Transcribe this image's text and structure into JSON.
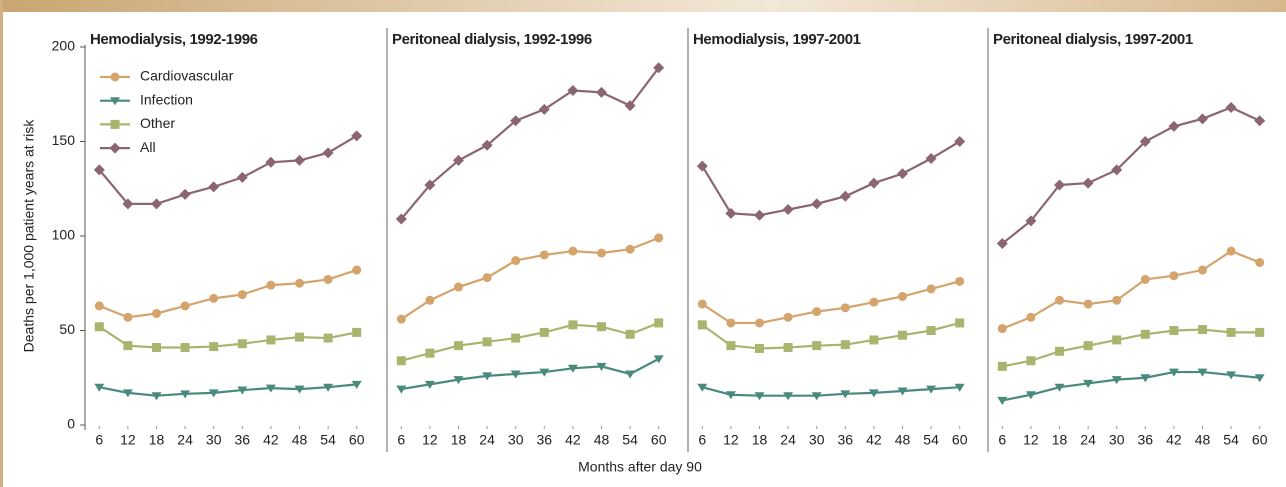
{
  "y_label": "Deaths per 1,000 patient years at risk",
  "x_label": "Months after day 90",
  "chart_data": [
    {
      "type": "line",
      "title": "Hemodialysis, 1992-1996",
      "legend": "upper left",
      "x": [
        6,
        12,
        18,
        24,
        30,
        36,
        42,
        48,
        54,
        60
      ],
      "xlim": [
        3,
        63
      ],
      "xticks": [
        6,
        12,
        18,
        24,
        30,
        36,
        42,
        48,
        54,
        60
      ],
      "ylim": [
        0,
        200
      ],
      "yticks": [
        0,
        50,
        100,
        150,
        200
      ],
      "series": [
        {
          "name": "Cardiovascular",
          "color": "#d4a46c",
          "marker": "circle",
          "values": [
            63,
            57,
            59,
            63,
            67,
            69,
            74,
            75,
            77,
            82
          ]
        },
        {
          "name": "Infection",
          "color": "#4a8a7c",
          "marker": "triangle-down",
          "values": [
            20,
            17,
            15.5,
            16.5,
            17,
            18.5,
            19.5,
            19,
            20,
            21.5
          ]
        },
        {
          "name": "Other",
          "color": "#a9b56e",
          "marker": "square",
          "values": [
            52,
            42,
            41,
            41,
            41.5,
            43,
            45,
            46.5,
            46,
            49
          ]
        },
        {
          "name": "All",
          "color": "#8b6670",
          "marker": "diamond",
          "values": [
            135,
            117,
            117,
            122,
            126,
            131,
            139,
            140,
            144,
            153
          ]
        }
      ]
    },
    {
      "type": "line",
      "title": "Peritoneal dialysis, 1992-1996",
      "x": [
        6,
        12,
        18,
        24,
        30,
        36,
        42,
        48,
        54,
        60
      ],
      "xlim": [
        3,
        63
      ],
      "xticks": [
        6,
        12,
        18,
        24,
        30,
        36,
        42,
        48,
        54,
        60
      ],
      "ylim": [
        0,
        200
      ],
      "series": [
        {
          "color": "#d4a46c",
          "marker": "circle",
          "values": [
            56,
            66,
            73,
            78,
            87,
            90,
            92,
            91,
            93,
            99
          ]
        },
        {
          "color": "#4a8a7c",
          "marker": "triangle-down",
          "values": [
            19,
            21.5,
            24,
            26,
            27,
            28,
            30,
            31,
            27,
            35
          ]
        },
        {
          "color": "#a9b56e",
          "marker": "square",
          "values": [
            34,
            38,
            42,
            44,
            46,
            49,
            53,
            52,
            48,
            54
          ]
        },
        {
          "color": "#8b6670",
          "marker": "diamond",
          "values": [
            109,
            127,
            140,
            148,
            161,
            167,
            177,
            176,
            169,
            189
          ]
        }
      ]
    },
    {
      "type": "line",
      "title": "Hemodialysis, 1997-2001",
      "x": [
        6,
        12,
        18,
        24,
        30,
        36,
        42,
        48,
        54,
        60
      ],
      "xlim": [
        3,
        63
      ],
      "xticks": [
        6,
        12,
        18,
        24,
        30,
        36,
        42,
        48,
        54,
        60
      ],
      "ylim": [
        0,
        200
      ],
      "series": [
        {
          "color": "#d4a46c",
          "marker": "circle",
          "values": [
            64,
            54,
            54,
            57,
            60,
            62,
            65,
            68,
            72,
            76
          ]
        },
        {
          "color": "#4a8a7c",
          "marker": "triangle-down",
          "values": [
            20,
            16,
            15.5,
            15.5,
            15.5,
            16.5,
            17,
            18,
            19,
            20
          ]
        },
        {
          "color": "#a9b56e",
          "marker": "square",
          "values": [
            53,
            42,
            40.5,
            41,
            42,
            42.5,
            45,
            47.5,
            50,
            54
          ]
        },
        {
          "color": "#8b6670",
          "marker": "diamond",
          "values": [
            137,
            112,
            111,
            114,
            117,
            121,
            128,
            133,
            141,
            150
          ]
        }
      ]
    },
    {
      "type": "line",
      "title": "Peritoneal dialysis, 1997-2001",
      "x": [
        6,
        12,
        18,
        24,
        30,
        36,
        42,
        48,
        54,
        60
      ],
      "xlim": [
        3,
        63
      ],
      "xticks": [
        6,
        12,
        18,
        24,
        30,
        36,
        42,
        48,
        54,
        60
      ],
      "ylim": [
        0,
        200
      ],
      "series": [
        {
          "color": "#d4a46c",
          "marker": "circle",
          "values": [
            51,
            57,
            66,
            64,
            66,
            77,
            79,
            82,
            92,
            86
          ]
        },
        {
          "color": "#4a8a7c",
          "marker": "triangle-down",
          "values": [
            13,
            16,
            20,
            22,
            24,
            25,
            28,
            28,
            26.5,
            25
          ]
        },
        {
          "color": "#a9b56e",
          "marker": "square",
          "values": [
            31,
            34,
            39,
            42,
            45,
            48,
            50,
            50.5,
            49,
            49
          ]
        },
        {
          "color": "#8b6670",
          "marker": "diamond",
          "values": [
            96,
            108,
            127,
            128,
            135,
            150,
            158,
            162,
            168,
            161
          ]
        }
      ]
    }
  ]
}
